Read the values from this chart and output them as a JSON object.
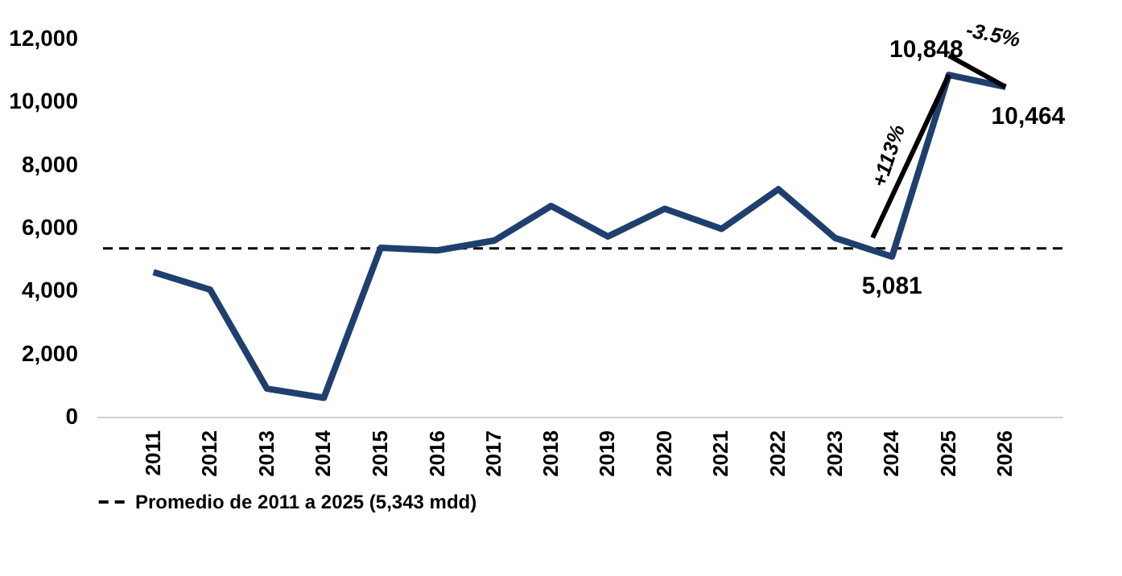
{
  "chart_data": {
    "type": "line",
    "categories": [
      "2011",
      "2012",
      "2013",
      "2014",
      "2015",
      "2016",
      "2017",
      "2018",
      "2019",
      "2020",
      "2021",
      "2022",
      "2023",
      "2024",
      "2025",
      "2026"
    ],
    "series": [
      {
        "color": "#1f3f6e",
        "values": [
          4590,
          4030,
          890,
          600,
          5360,
          5280,
          5590,
          6690,
          5720,
          6600,
          5960,
          7220,
          5670,
          5081,
          10848,
          10464
        ],
        "value_labels": [
          null,
          null,
          null,
          null,
          null,
          null,
          null,
          null,
          null,
          null,
          null,
          null,
          null,
          "5,081",
          "10,848",
          "10,464"
        ]
      }
    ],
    "ylim": [
      0,
      12000
    ],
    "yticks": [
      {
        "value": 0,
        "label": "0"
      },
      {
        "value": 2000,
        "label": "2,000"
      },
      {
        "value": 4000,
        "label": "4,000"
      },
      {
        "value": 6000,
        "label": "6,000"
      },
      {
        "value": 8000,
        "label": "8,000"
      },
      {
        "value": 10000,
        "label": "10,000"
      },
      {
        "value": 12000,
        "label": "12,000"
      }
    ],
    "ref_lines": [
      {
        "axis": "y",
        "value": 5343,
        "label": "Promedio de 2011 a 2025 (5,343 mdd)",
        "color": "#000000",
        "line_style": "dashed"
      }
    ],
    "annotations": [
      "+113%",
      {
        "text": "-3.5%",
        "x": "2026",
        "y": 10464
      }
    ],
    "legend": "bottom",
    "grid": false,
    "marker": "none",
    "line_style": "solid"
  }
}
